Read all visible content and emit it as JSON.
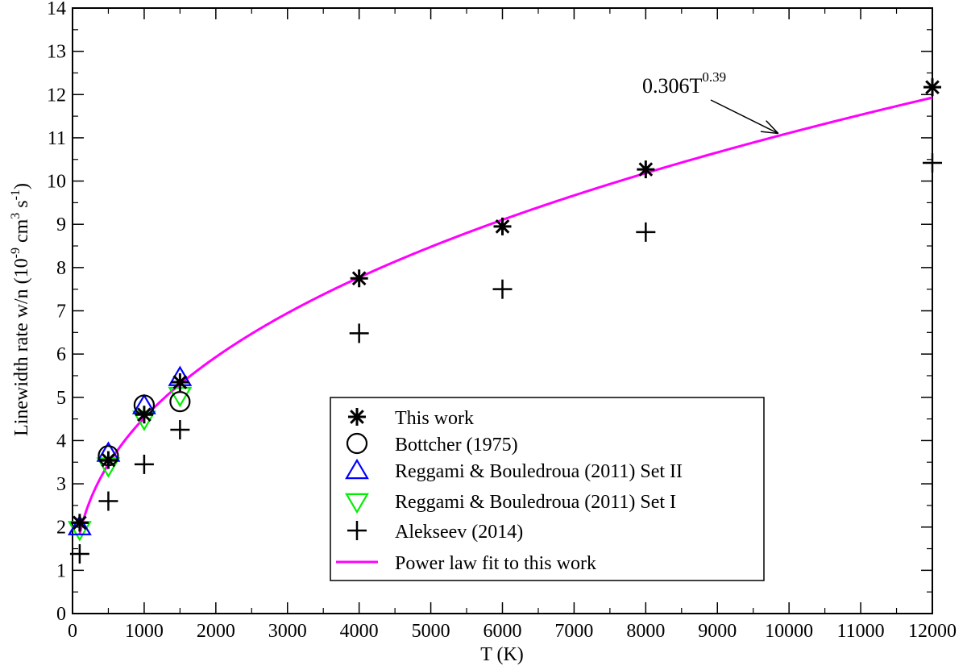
{
  "chart_data": {
    "type": "scatter",
    "xlabel": "T (K)",
    "ylabel": {
      "prefix": "Linewidth rate w/n (10",
      "exp1": "-9",
      "mid": " cm",
      "exp2": "3",
      "s": " s",
      "exp3": "-1",
      "suffix": ")"
    },
    "xlim": [
      0,
      12000
    ],
    "ylim": [
      0,
      14
    ],
    "xticks": [
      0,
      1000,
      2000,
      3000,
      4000,
      5000,
      6000,
      7000,
      8000,
      9000,
      10000,
      11000,
      12000
    ],
    "yticks": [
      0,
      1,
      2,
      3,
      4,
      5,
      6,
      7,
      8,
      9,
      10,
      11,
      12,
      13,
      14
    ],
    "x_minor_step": 500,
    "y_minor_step": 0.5,
    "series": [
      {
        "name": "This work",
        "marker": "asterisk",
        "color": "#000000",
        "x": [
          100,
          500,
          1000,
          1500,
          4000,
          6000,
          8000,
          12000
        ],
        "y": [
          2.1,
          3.55,
          4.6,
          5.35,
          7.75,
          8.95,
          10.27,
          12.17
        ]
      },
      {
        "name": "Bottcher (1975)",
        "marker": "circle",
        "color": "#000000",
        "x": [
          500,
          1000,
          1500
        ],
        "y": [
          3.65,
          4.82,
          4.9
        ]
      },
      {
        "name": "Reggami & Bouledroua (2011) Set II",
        "marker": "triangle-up",
        "color": "#0000ff",
        "x": [
          100,
          500,
          1000,
          1500
        ],
        "y": [
          2.0,
          3.7,
          4.8,
          5.45
        ]
      },
      {
        "name": "Reggami & Bouledroua (2011) Set I",
        "marker": "triangle-down",
        "color": "#00ee00",
        "x": [
          100,
          500,
          1000,
          1500
        ],
        "y": [
          1.95,
          3.42,
          4.5,
          5.05
        ]
      },
      {
        "name": "Alekseev (2014)",
        "marker": "plus",
        "color": "#000000",
        "x": [
          100,
          500,
          1000,
          1500,
          4000,
          6000,
          8000,
          12000
        ],
        "y": [
          1.38,
          2.6,
          3.45,
          4.25,
          6.48,
          7.5,
          8.82,
          10.42
        ]
      },
      {
        "name": "Power law fit to this work",
        "marker": "line",
        "color": "#ff00ff",
        "fit": {
          "coef": 0.306,
          "exp": 0.39,
          "unit_scale": 1000
        }
      }
    ],
    "annotation": {
      "base": "0.306T",
      "exp": "0.39",
      "arrow_to": [
        9850,
        11.1
      ]
    },
    "legend_position": "bottom-right"
  }
}
